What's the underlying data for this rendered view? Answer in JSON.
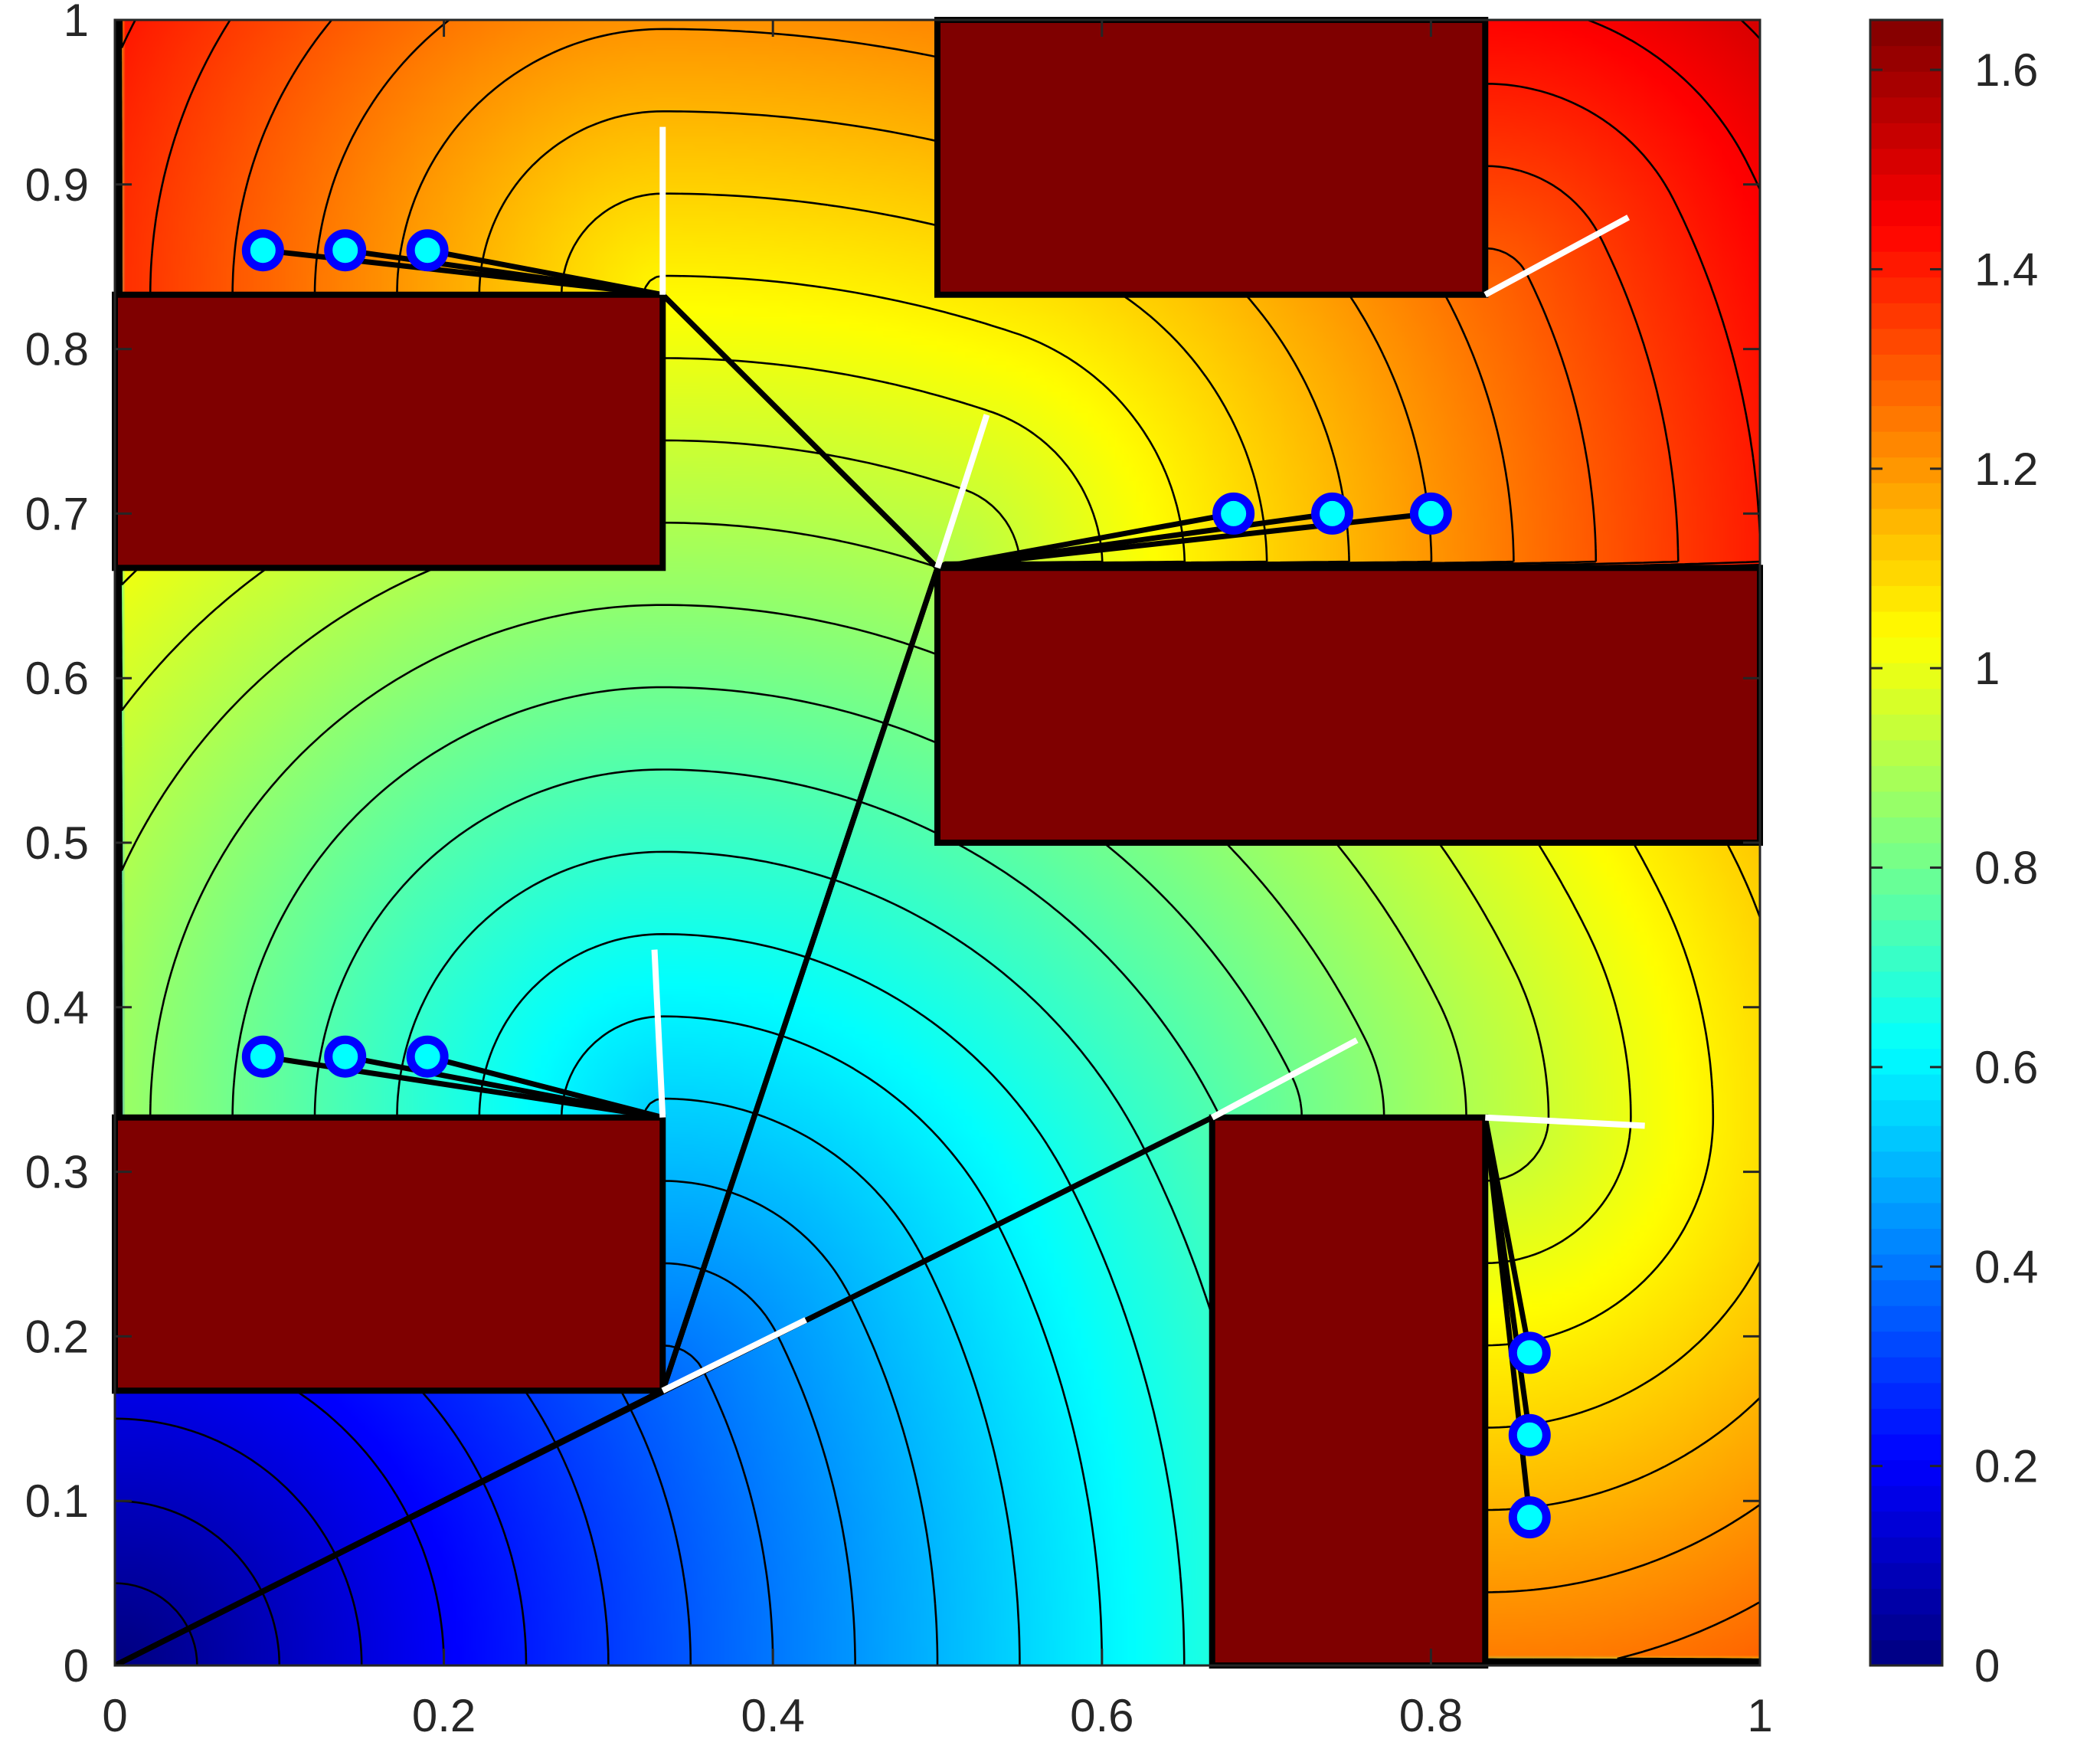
{
  "chart_data": {
    "type": "heatmap",
    "title": "",
    "xlabel": "",
    "ylabel": "",
    "xlim": [
      0,
      1
    ],
    "ylim": [
      0,
      1
    ],
    "x_ticks": [
      "0",
      "0.2",
      "0.4",
      "0.6",
      "0.8",
      "1"
    ],
    "y_ticks": [
      "0",
      "0.1",
      "0.2",
      "0.3",
      "0.4",
      "0.5",
      "0.6",
      "0.7",
      "0.8",
      "0.9",
      "1"
    ],
    "colorbar": {
      "colormap": "jet",
      "range": [
        0,
        1.65
      ],
      "ticks": [
        "0",
        "0.2",
        "0.4",
        "0.6",
        "0.8",
        "1",
        "1.2",
        "1.4",
        "1.6"
      ]
    },
    "field": {
      "description_source": "contour of geodesic distance from origin",
      "source_point": [
        0,
        0
      ],
      "contour_levels": [
        0.05,
        0.1,
        0.15,
        0.2,
        0.25,
        0.3,
        0.35,
        0.4,
        0.45,
        0.5,
        0.55,
        0.6,
        0.65,
        0.7,
        0.75,
        0.8,
        0.85,
        0.9,
        0.95,
        1.0,
        1.05,
        1.1,
        1.15,
        1.2,
        1.25,
        1.3,
        1.35,
        1.4,
        1.45,
        1.5,
        1.55
      ]
    },
    "obstacles": [
      {
        "x": [
          0,
          0.333
        ],
        "y": [
          0.667,
          0.833
        ]
      },
      {
        "x": [
          0.5,
          0.833
        ],
        "y": [
          0.833,
          1.0
        ]
      },
      {
        "x": [
          0.5,
          1.0
        ],
        "y": [
          0.5,
          0.667
        ]
      },
      {
        "x": [
          0,
          0.333
        ],
        "y": [
          0.167,
          0.333
        ]
      },
      {
        "x": [
          0.667,
          0.833
        ],
        "y": [
          0,
          0.333
        ]
      }
    ],
    "vertices": [
      [
        0.333,
        0.167
      ],
      [
        0.5,
        0.667
      ],
      [
        0.333,
        0.833
      ],
      [
        0.333,
        0.333
      ],
      [
        0.667,
        0.333
      ],
      [
        0.833,
        0.333
      ],
      [
        0.833,
        0.833
      ]
    ],
    "paths": [
      {
        "points": [
          [
            0,
            0
          ],
          [
            0.333,
            0.167
          ],
          [
            0.5,
            0.667
          ],
          [
            0.8,
            0.7
          ]
        ]
      },
      {
        "points": [
          [
            0,
            0
          ],
          [
            0.333,
            0.167
          ],
          [
            0.5,
            0.667
          ],
          [
            0.74,
            0.7
          ]
        ]
      },
      {
        "points": [
          [
            0,
            0
          ],
          [
            0.333,
            0.167
          ],
          [
            0.5,
            0.667
          ],
          [
            0.68,
            0.7
          ]
        ]
      },
      {
        "points": [
          [
            0,
            0
          ],
          [
            0.333,
            0.167
          ],
          [
            0.5,
            0.667
          ],
          [
            0.333,
            0.833
          ],
          [
            0.19,
            0.86
          ]
        ]
      },
      {
        "points": [
          [
            0,
            0
          ],
          [
            0.333,
            0.167
          ],
          [
            0.5,
            0.667
          ],
          [
            0.333,
            0.833
          ],
          [
            0.14,
            0.86
          ]
        ]
      },
      {
        "points": [
          [
            0,
            0
          ],
          [
            0.333,
            0.167
          ],
          [
            0.5,
            0.667
          ],
          [
            0.333,
            0.833
          ],
          [
            0.09,
            0.86
          ]
        ]
      },
      {
        "points": [
          [
            0,
            0
          ],
          [
            0.333,
            0.167
          ],
          [
            0.333,
            0.333
          ],
          [
            0.19,
            0.37
          ]
        ]
      },
      {
        "points": [
          [
            0,
            0
          ],
          [
            0.333,
            0.167
          ],
          [
            0.333,
            0.333
          ],
          [
            0.14,
            0.37
          ]
        ]
      },
      {
        "points": [
          [
            0,
            0
          ],
          [
            0.333,
            0.167
          ],
          [
            0.333,
            0.333
          ],
          [
            0.09,
            0.37
          ]
        ]
      },
      {
        "points": [
          [
            0,
            0
          ],
          [
            0.667,
            0.333
          ],
          [
            0.833,
            0.333
          ],
          [
            0.86,
            0.19
          ]
        ]
      },
      {
        "points": [
          [
            0,
            0
          ],
          [
            0.667,
            0.333
          ],
          [
            0.833,
            0.333
          ],
          [
            0.86,
            0.14
          ]
        ]
      },
      {
        "points": [
          [
            0,
            0
          ],
          [
            0.667,
            0.333
          ],
          [
            0.833,
            0.333
          ],
          [
            0.86,
            0.09
          ]
        ]
      }
    ],
    "targets": [
      [
        0.09,
        0.86
      ],
      [
        0.14,
        0.86
      ],
      [
        0.19,
        0.86
      ],
      [
        0.68,
        0.7
      ],
      [
        0.74,
        0.7
      ],
      [
        0.8,
        0.7
      ],
      [
        0.09,
        0.37
      ],
      [
        0.14,
        0.37
      ],
      [
        0.19,
        0.37
      ],
      [
        0.86,
        0.19
      ],
      [
        0.86,
        0.14
      ],
      [
        0.86,
        0.09
      ]
    ],
    "white_segments": [
      [
        [
          0.333,
          0.167
        ],
        [
          0.42,
          0.21
        ]
      ],
      [
        [
          0.5,
          0.667
        ],
        [
          0.53,
          0.76
        ]
      ],
      [
        [
          0.333,
          0.833
        ],
        [
          0.333,
          0.935
        ]
      ],
      [
        [
          0.333,
          0.333
        ],
        [
          0.328,
          0.435
        ]
      ],
      [
        [
          0.667,
          0.333
        ],
        [
          0.755,
          0.38
        ]
      ],
      [
        [
          0.833,
          0.333
        ],
        [
          0.93,
          0.328
        ]
      ],
      [
        [
          0.833,
          0.833
        ],
        [
          0.92,
          0.88
        ]
      ]
    ],
    "grid": false,
    "legend": "none"
  },
  "colors": {
    "obstacle_fill": "#7f0000",
    "path_line": "#000000",
    "white_segment": "#ffffff",
    "marker_edge": "#0000ff",
    "marker_face": "#00ffff",
    "axis": "#262626"
  }
}
